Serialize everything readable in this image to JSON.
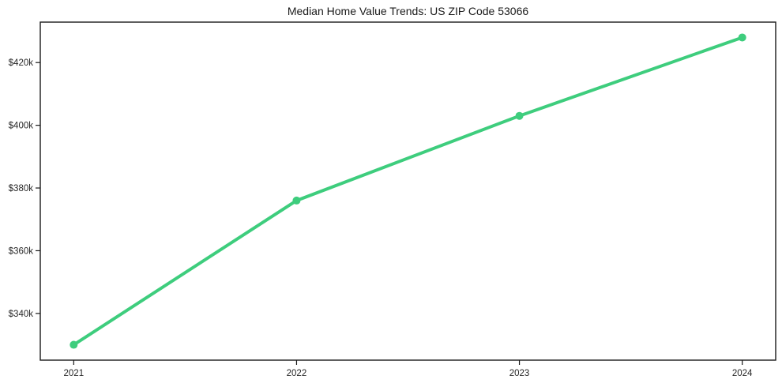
{
  "chart_data": {
    "type": "line",
    "title": "Median Home Value Trends: US ZIP Code 53066",
    "x": [
      2021,
      2022,
      2023,
      2024
    ],
    "values": [
      330000,
      376000,
      403000,
      428000
    ],
    "xtick_labels": [
      "2021",
      "2022",
      "2023",
      "2024"
    ],
    "ytick_values": [
      340000,
      360000,
      380000,
      400000,
      420000
    ],
    "ytick_labels": [
      "$340k",
      "$360k",
      "$380k",
      "$400k",
      "$420k"
    ],
    "xlim": [
      2020.85,
      2024.15
    ],
    "ylim": [
      325100,
      432900
    ],
    "grid": false,
    "legend": "none",
    "colors": {
      "line": "#3ecd7d",
      "axis": "#1a1a1a",
      "text": "#262626",
      "background": "#ffffff"
    }
  }
}
